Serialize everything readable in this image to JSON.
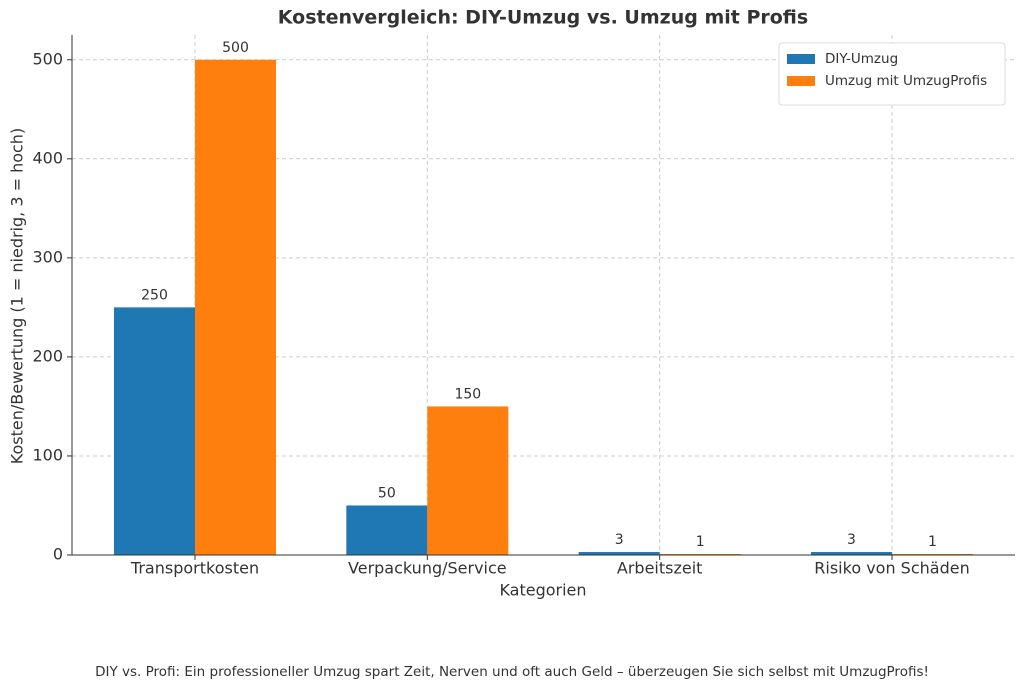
{
  "chart_data": {
    "type": "bar",
    "title": "Kostenvergleich: DIY-Umzug vs. Umzug mit Profis",
    "x_label": "Kategorien",
    "y_label": "Kosten/Bewertung (1 = niedrig, 3 = hoch)",
    "categories": [
      "Transportkosten",
      "Verpackung/Service",
      "Arbeitszeit",
      "Risiko von Schäden"
    ],
    "series": [
      {
        "name": "DIY-Umzug",
        "color": "#1f77b4",
        "values": [
          250,
          50,
          3,
          3
        ]
      },
      {
        "name": "Umzug mit UmzugProfis",
        "color": "#ff7f0e",
        "values": [
          500,
          150,
          1,
          1
        ]
      }
    ],
    "ylim": [
      0,
      525
    ],
    "yticks": [
      0,
      100,
      200,
      300,
      400,
      500
    ],
    "grid": true,
    "legend": "upper right",
    "footnote": "DIY vs. Profi: Ein professioneller Umzug spart Zeit, Nerven und oft auch Geld – überzeugen Sie sich selbst mit UmzugProfis!"
  }
}
